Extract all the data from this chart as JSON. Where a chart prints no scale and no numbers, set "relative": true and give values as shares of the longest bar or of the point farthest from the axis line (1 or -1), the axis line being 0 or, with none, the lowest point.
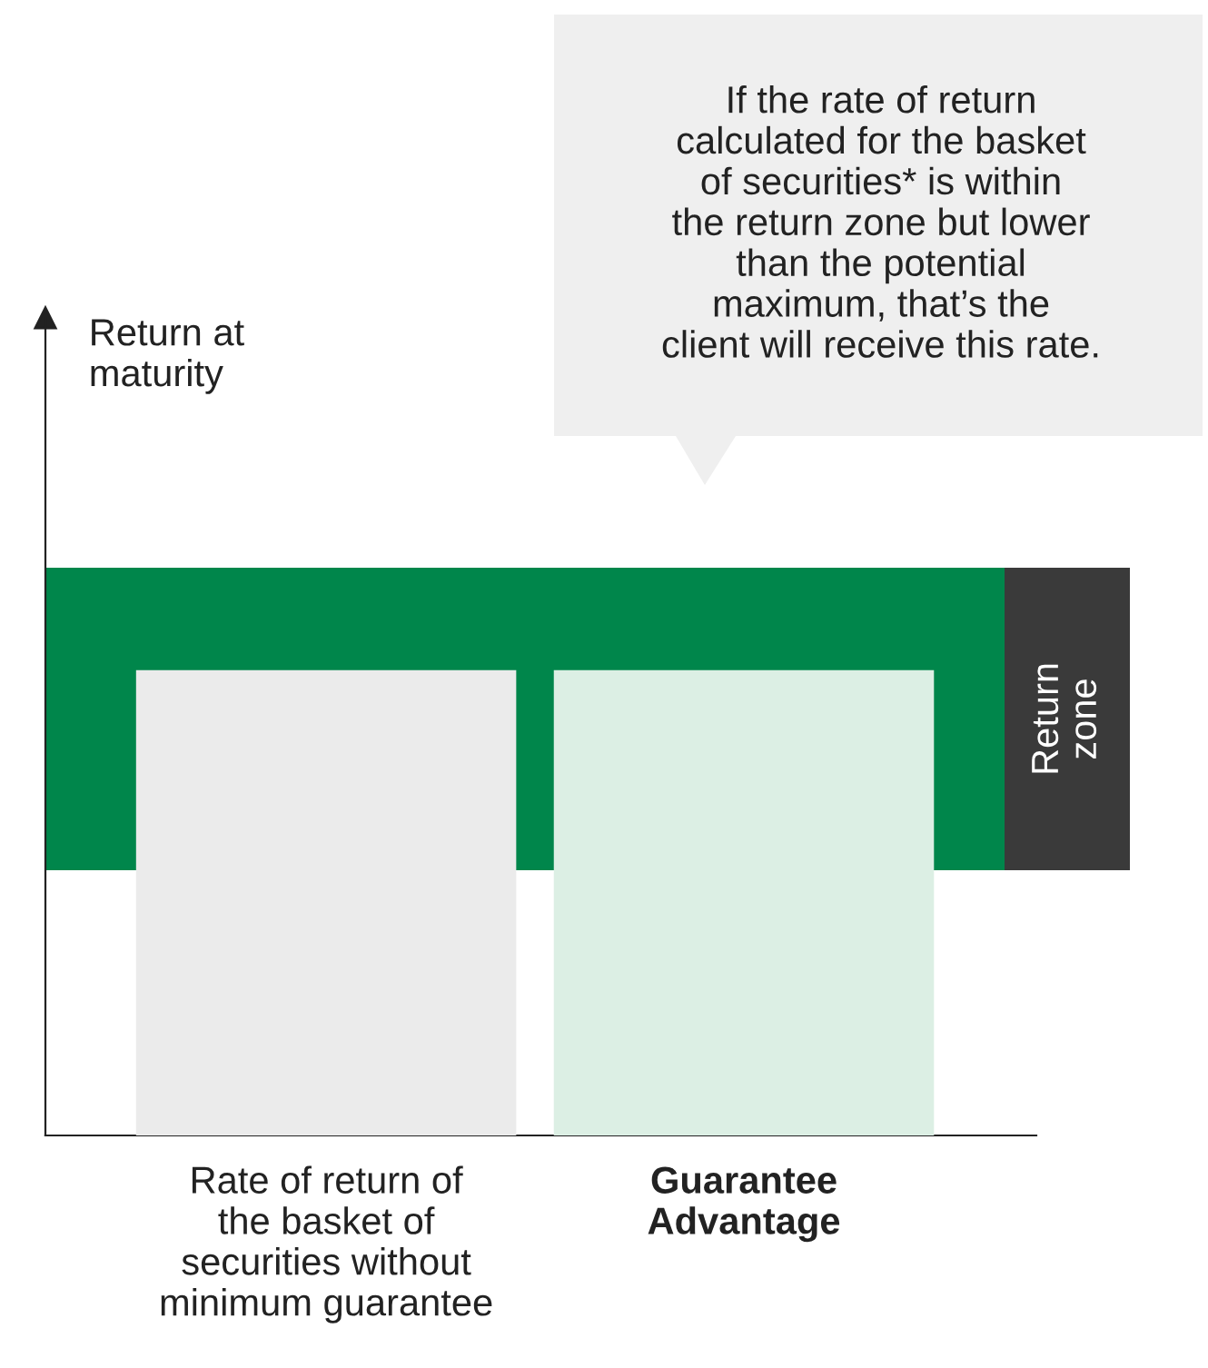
{
  "chart_data": {
    "type": "bar",
    "relative": true,
    "categories": [
      "Rate of return of\nthe basket of\nsecurities without\nminimum guarantee",
      "Guarantee\nAdvantage"
    ],
    "values": [
      1,
      1
    ],
    "colors": [
      "#ebebeb",
      "#dcefe4"
    ],
    "bands": [
      {
        "axis": "y",
        "from": 0.57,
        "to": 1.22,
        "color": "#00864b"
      },
      {
        "axis": "y",
        "from": 0.57,
        "to": 1.22,
        "label": "Return\nzone",
        "color": "#3a3a3a"
      }
    ],
    "annotations": [
      "Return at\nmaturity",
      "If the rate of return\ncalculated for the basket\nof securities* is within\nthe return zone but lower\nthan the potential\nmaximum, that’s the\nclient will receive this rate."
    ],
    "grid": false,
    "legend": false
  }
}
